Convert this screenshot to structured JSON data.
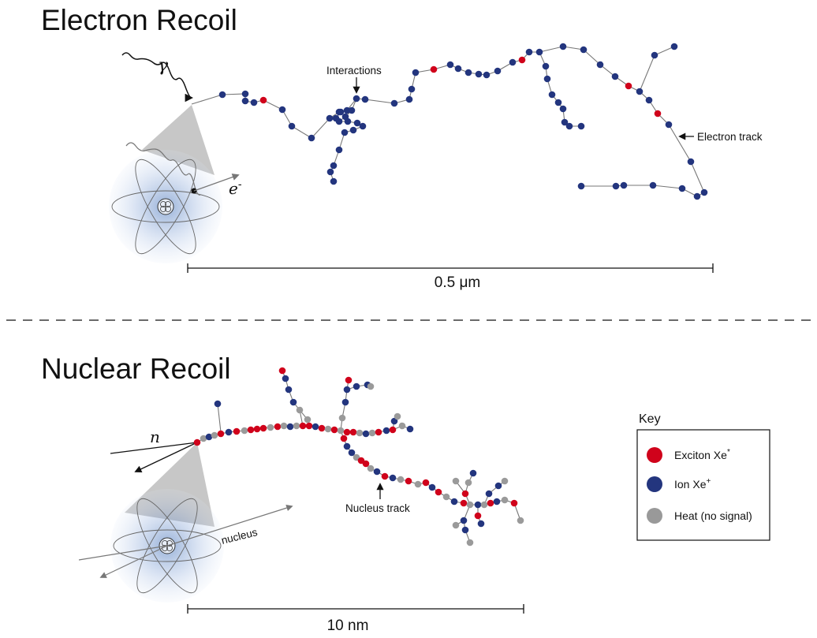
{
  "electron_section": {
    "title": "Electron Recoil",
    "gamma_symbol": "γ",
    "electron_symbol": "e",
    "electron_superscript": "-",
    "interactions_label": "Interactions",
    "track_label": "Electron track",
    "scale_label": "0.5 μm"
  },
  "nuclear_section": {
    "title": "Nuclear Recoil",
    "neutron_symbol": "n",
    "nucleus_label": "nucleus",
    "track_label": "Nucleus track",
    "scale_label": "10 nm"
  },
  "key": {
    "title": "Key",
    "items": [
      {
        "label": "Exciton Xe",
        "superscript": "*",
        "color": "#d0021b"
      },
      {
        "label": "Ion Xe",
        "superscript": "+",
        "color": "#23357e"
      },
      {
        "label": "Heat (no signal)",
        "superscript": "",
        "color": "#999999"
      }
    ]
  },
  "colors": {
    "exciton": "#d0021b",
    "ion": "#23357e",
    "heat": "#9a9a9a",
    "line": "#777777",
    "atom_glow": "#3e6db5"
  },
  "icons": [
    "xenon-atom-icon",
    "gamma-wave-icon",
    "arrow-icon"
  ]
}
